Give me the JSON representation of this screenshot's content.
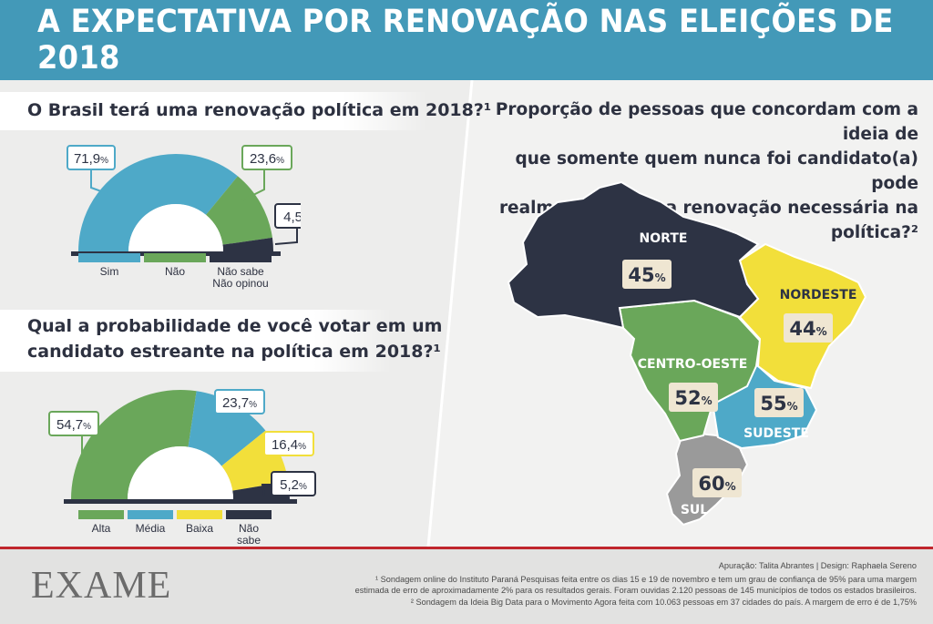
{
  "header": {
    "title": "A EXPECTATIVA POR RENOVAÇÃO NAS ELEIÇÕES DE 2018"
  },
  "chart_data": [
    {
      "type": "pie",
      "title": "O Brasil terá uma renovação política em 2018?¹",
      "categories": [
        "Sim",
        "Não",
        "Não sabe\nNão opinou"
      ],
      "legend": [
        "Sim",
        "Não",
        "Não sabe",
        "Não opinou"
      ],
      "values": [
        71.9,
        23.6,
        4.5
      ],
      "labels": [
        "71,9",
        "23,6",
        "4,5"
      ],
      "unit": "%",
      "colors": [
        "#4ea9c8",
        "#6aa75a",
        "#2d3344"
      ]
    },
    {
      "type": "pie",
      "title_lines": [
        "Qual a probabilidade de você votar em um",
        "candidato estreante na política em 2018?¹"
      ],
      "categories": [
        "Alta",
        "Média",
        "Baixa",
        "Não sabe"
      ],
      "values": [
        54.7,
        23.7,
        16.4,
        5.2
      ],
      "labels": [
        "54,7",
        "23,7",
        "16,4",
        "5,2"
      ],
      "unit": "%",
      "colors": [
        "#6aa75a",
        "#4ea9c8",
        "#f2df3a",
        "#2d3344"
      ]
    },
    {
      "type": "map",
      "title_lines": [
        "Proporção de pessoas que concordam com a ideia de",
        "que somente quem nunca foi candidato(a) pode",
        "realmente trazer a renovação necessária na política?²"
      ],
      "regions": [
        {
          "name": "NORTE",
          "value": 45,
          "color": "#2d3344"
        },
        {
          "name": "NORDESTE",
          "value": 44,
          "color": "#f2df3a"
        },
        {
          "name": "CENTRO-OESTE",
          "value": 52,
          "color": "#6aa75a"
        },
        {
          "name": "SUDESTE",
          "value": 55,
          "color": "#4ea9c8"
        },
        {
          "name": "SUL",
          "value": 60,
          "color": "#9a9a9a"
        }
      ],
      "unit": "%"
    }
  ],
  "footer": {
    "logo": "EXAME",
    "credits_line": "Apuração: Talita Abrantes | Design: Raphaela Sereno",
    "note1_a": "¹ Sondagem online do Instituto Paraná Pesquisas feita entre os dias 15 e 19 de novembro e tem um grau de confiança de 95% para uma margem",
    "note1_b": "estimada de erro de aproximadamente 2% para os resultados gerais. Foram ouvidas 2.120 pessoas de 145 municípios de todos os estados brasileiros.",
    "note2": "² Sondagem da Ideia Big Data para o Movimento Agora feita com 10.063 pessoas em 37 cidades do país. A margem de erro é de 1,75%"
  },
  "colors": {
    "header_bg": "#4399b8",
    "dark": "#2d3344",
    "blue": "#4ea9c8",
    "green": "#6aa75a",
    "yellow": "#f2df3a",
    "gray": "#9a9a9a",
    "red_rule": "#c0262d"
  }
}
